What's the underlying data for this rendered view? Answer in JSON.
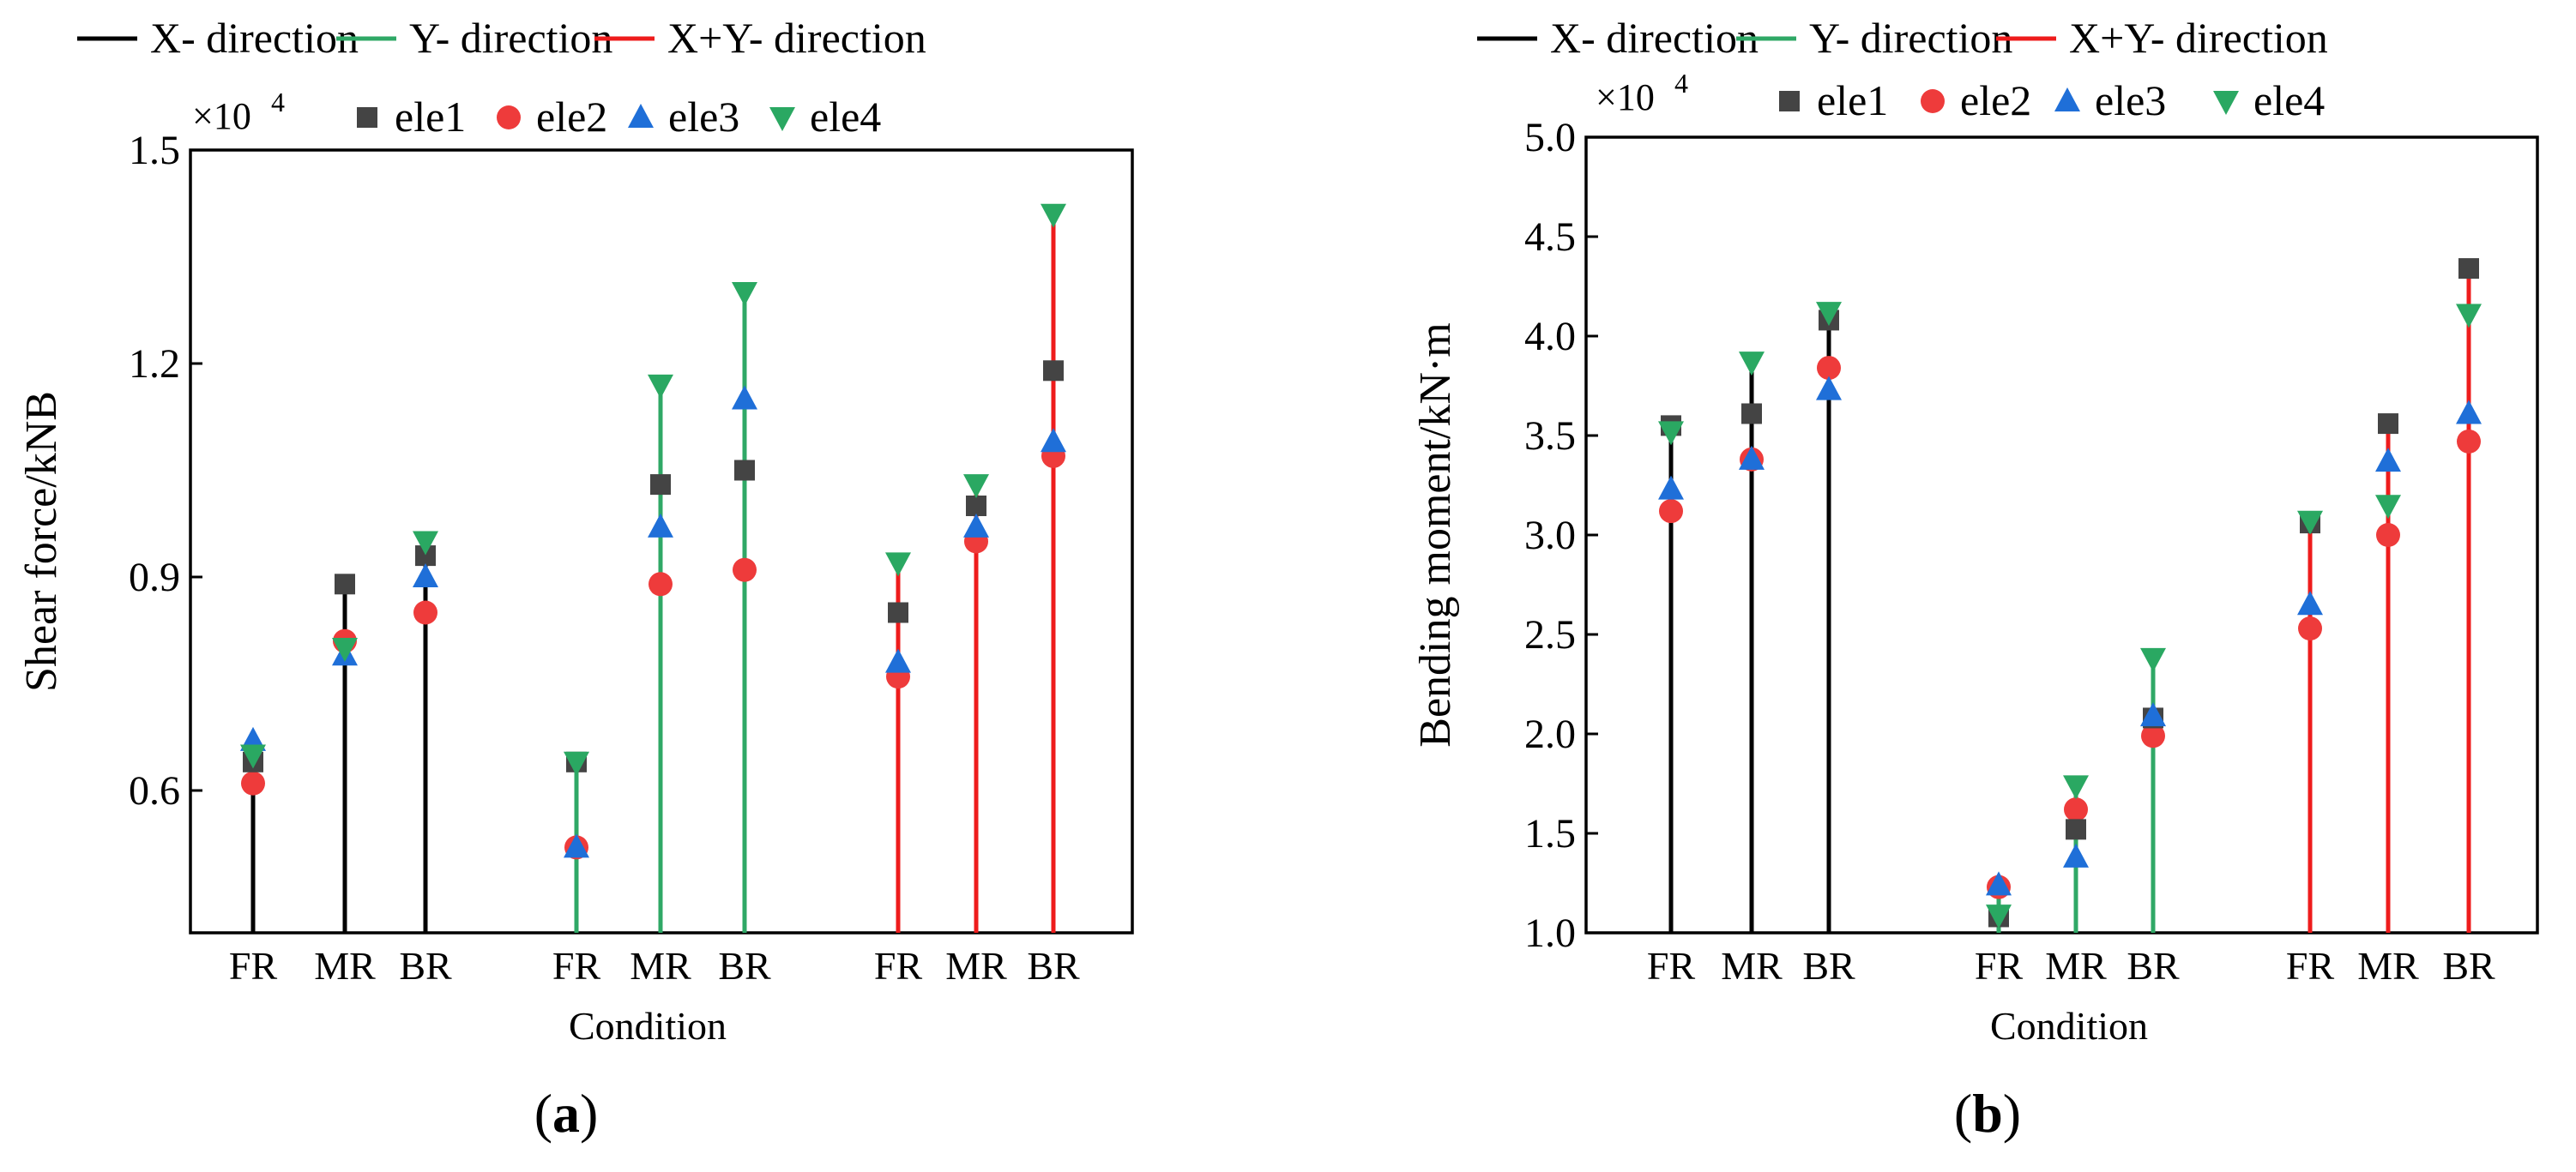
{
  "figure": {
    "panel_a_label": "a",
    "panel_b_label": "b"
  },
  "colors": {
    "x_direction": "#000000",
    "y_direction": "#2fa866",
    "xy_direction": "#ee1c1c",
    "ele1": "#444444",
    "ele2": "#ee3b3b",
    "ele3": "#1f6fd8",
    "ele4": "#2aa862"
  },
  "chart_data": [
    {
      "type": "scatter",
      "title": "",
      "ylabel": "Shear force/kNB",
      "xlabel": "Condition",
      "y_scale_label": "×10",
      "y_scale_exp": "4",
      "ylim": [
        0.4,
        1.5
      ],
      "yticks": [
        0.6,
        0.9,
        1.2,
        1.5
      ],
      "ytick_labels": [
        "0.6",
        "0.9",
        "1.2",
        "1.5"
      ],
      "line_legend": [
        "X- direction",
        "Y- direction",
        "X+Y- direction"
      ],
      "marker_legend": [
        "ele1",
        "ele2",
        "ele3",
        "ele4"
      ],
      "groups": [
        {
          "direction": "X- direction",
          "categories": [
            "FR",
            "MR",
            "BR"
          ],
          "stem_top": [
            0.65,
            0.89,
            0.95
          ],
          "ele1": [
            0.64,
            0.89,
            0.93
          ],
          "ele2": [
            0.61,
            0.81,
            0.85
          ],
          "ele3": [
            0.67,
            0.79,
            0.9
          ],
          "ele4": [
            0.65,
            0.8,
            0.95
          ]
        },
        {
          "direction": "Y- direction",
          "categories": [
            "FR",
            "MR",
            "BR"
          ],
          "stem_top": [
            0.64,
            1.17,
            1.3
          ],
          "ele1": [
            0.64,
            1.03,
            1.05
          ],
          "ele2": [
            0.52,
            0.89,
            0.91
          ],
          "ele3": [
            0.52,
            0.97,
            1.15
          ],
          "ele4": [
            0.64,
            1.17,
            1.3
          ]
        },
        {
          "direction": "X+Y- direction",
          "categories": [
            "FR",
            "MR",
            "BR"
          ],
          "stem_top": [
            0.92,
            1.03,
            1.41
          ],
          "ele1": [
            0.85,
            1.0,
            1.19
          ],
          "ele2": [
            0.76,
            0.95,
            1.07
          ],
          "ele3": [
            0.78,
            0.97,
            1.09
          ],
          "ele4": [
            0.92,
            1.03,
            1.41
          ]
        }
      ]
    },
    {
      "type": "scatter",
      "title": "",
      "ylabel": "Bending moment/kN·m",
      "xlabel": "Condition",
      "y_scale_label": "×10",
      "y_scale_exp": "4",
      "ylim": [
        1.0,
        5.0
      ],
      "yticks": [
        1.0,
        1.5,
        2.0,
        2.5,
        3.0,
        3.5,
        4.0,
        4.5,
        5.0
      ],
      "ytick_labels": [
        "1.0",
        "1.5",
        "2.0",
        "2.5",
        "3.0",
        "3.5",
        "4.0",
        "4.5",
        "5.0"
      ],
      "line_legend": [
        "X- direction",
        "Y- direction",
        "X+Y- direction"
      ],
      "marker_legend": [
        "ele1",
        "ele2",
        "ele3",
        "ele4"
      ],
      "groups": [
        {
          "direction": "X- direction",
          "categories": [
            "FR",
            "MR",
            "BR"
          ],
          "stem_top": [
            3.55,
            3.87,
            4.12
          ],
          "ele1": [
            3.55,
            3.61,
            4.08
          ],
          "ele2": [
            3.12,
            3.38,
            3.84
          ],
          "ele3": [
            3.23,
            3.38,
            3.73
          ],
          "ele4": [
            3.52,
            3.87,
            4.12
          ]
        },
        {
          "direction": "Y- direction",
          "categories": [
            "FR",
            "MR",
            "BR"
          ],
          "stem_top": [
            1.27,
            1.74,
            2.38
          ],
          "ele1": [
            1.08,
            1.52,
            2.08
          ],
          "ele2": [
            1.23,
            1.62,
            1.99
          ],
          "ele3": [
            1.24,
            1.38,
            2.09
          ],
          "ele4": [
            1.09,
            1.74,
            2.38
          ]
        },
        {
          "direction": "X+Y- direction",
          "categories": [
            "FR",
            "MR",
            "BR"
          ],
          "stem_top": [
            3.08,
            3.56,
            4.34
          ],
          "ele1": [
            3.06,
            3.56,
            4.34
          ],
          "ele2": [
            2.53,
            3.0,
            3.47
          ],
          "ele3": [
            2.65,
            3.37,
            3.61
          ],
          "ele4": [
            3.07,
            3.15,
            4.11
          ]
        }
      ]
    }
  ]
}
